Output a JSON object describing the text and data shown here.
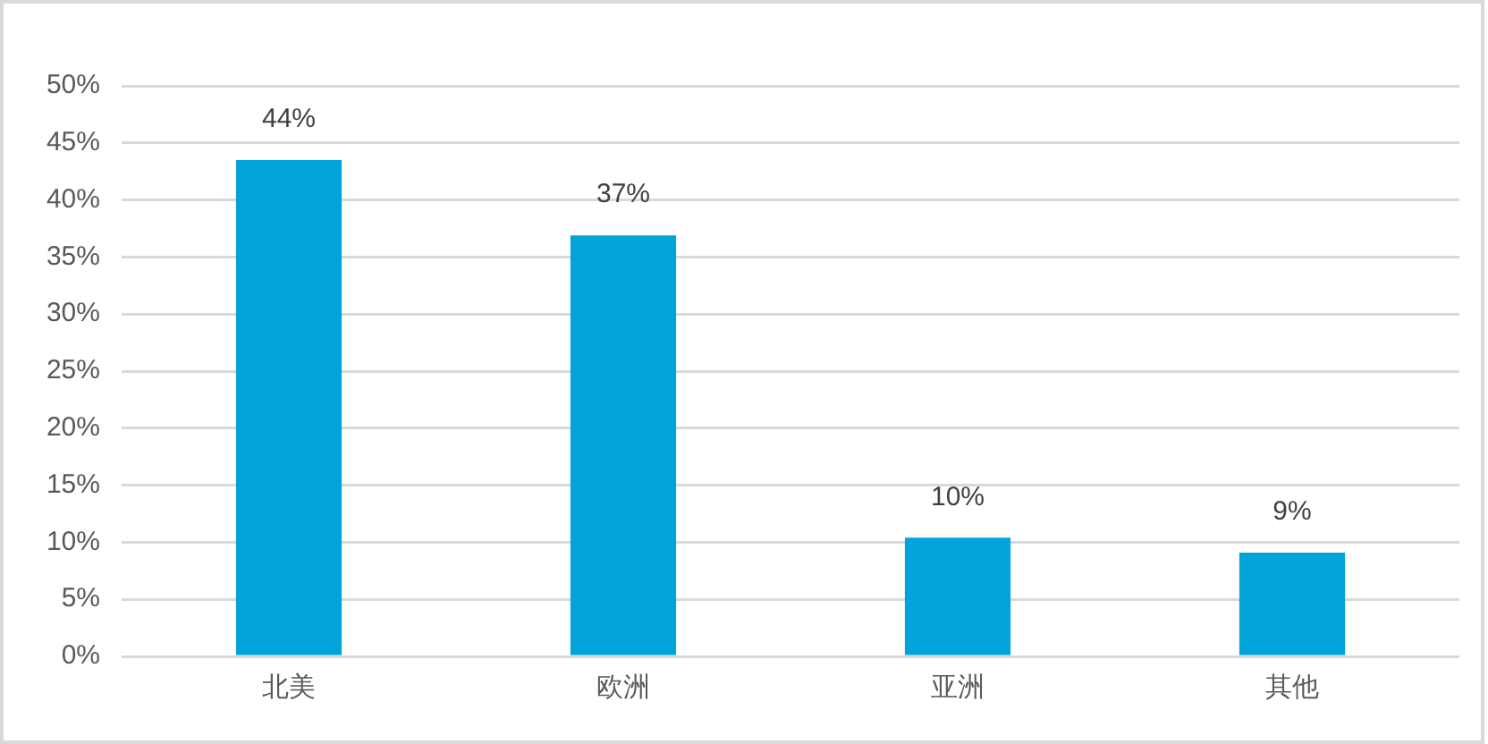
{
  "chart_data": {
    "type": "bar",
    "categories": [
      "北美",
      "欧洲",
      "亚洲",
      "其他"
    ],
    "values": [
      43.5,
      36.9,
      10.4,
      9.1
    ],
    "color": "#00a3da",
    "value_labels": [
      "44%",
      "37%",
      "10%",
      "9%"
    ],
    "ylim": [
      0,
      50
    ],
    "yticks": [
      {
        "value": 0,
        "label": "0%"
      },
      {
        "value": 5,
        "label": "5%"
      },
      {
        "value": 10,
        "label": "10%"
      },
      {
        "value": 15,
        "label": "15%"
      },
      {
        "value": 20,
        "label": "20%"
      },
      {
        "value": 25,
        "label": "25%"
      },
      {
        "value": 30,
        "label": "30%"
      },
      {
        "value": 35,
        "label": "35%"
      },
      {
        "value": 40,
        "label": "40%"
      },
      {
        "value": 45,
        "label": "45%"
      },
      {
        "value": 50,
        "label": "50%"
      }
    ],
    "grid": "y"
  }
}
